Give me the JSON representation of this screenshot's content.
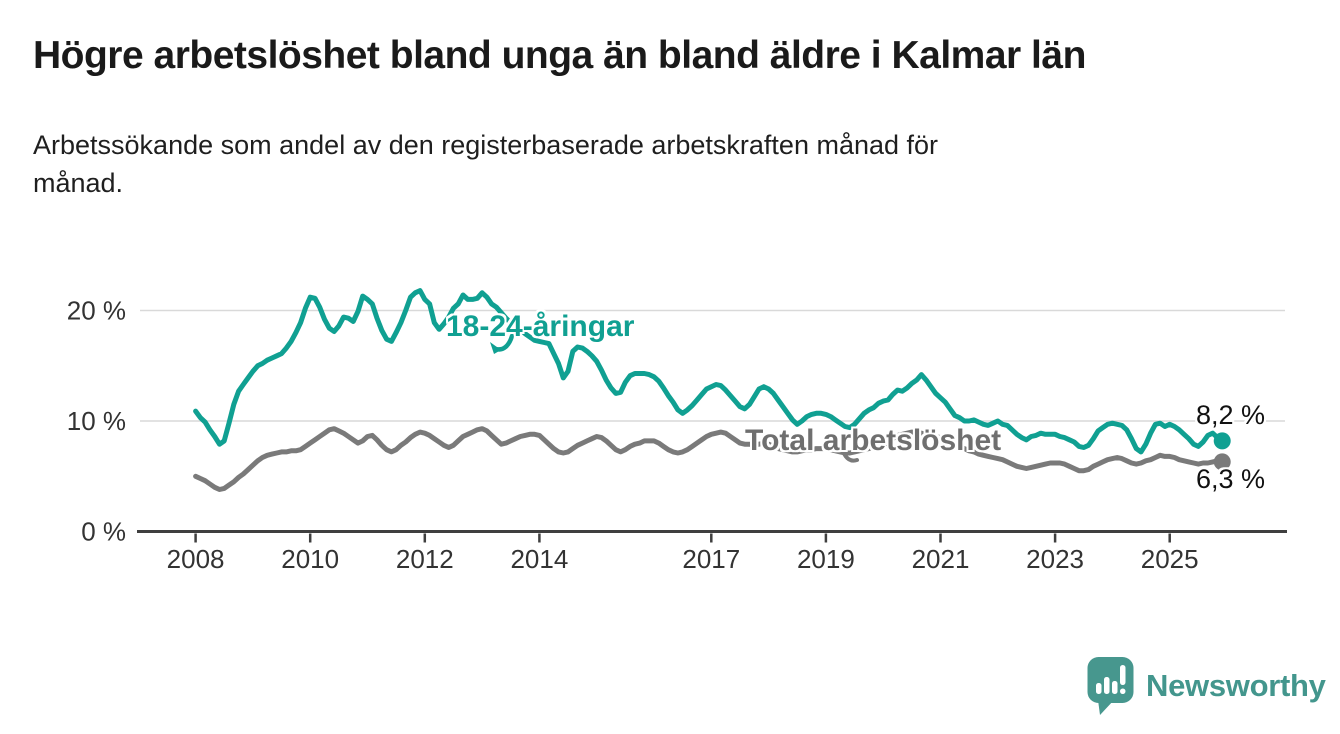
{
  "page": {
    "background": "#ffffff"
  },
  "header": {
    "title": "Högre arbetslöshet bland unga än bland äldre i Kalmar län",
    "subtitle": "Arbetssökande som andel av den registerbaserade arbetskraften månad för månad."
  },
  "footer": {
    "brand": "Newsworthy",
    "brand_color": "#43968d",
    "logo_icon": "speech-bubble-bar-chart"
  },
  "chart_data": {
    "type": "line",
    "title": "",
    "xlabel": "",
    "ylabel": "",
    "x_start": 2008.0,
    "x_step_years": 0.083333,
    "x_ticks": [
      2008,
      2010,
      2012,
      2014,
      2017,
      2019,
      2021,
      2023,
      2025
    ],
    "y_ticks": [
      0,
      10,
      20
    ],
    "y_tick_suffix": " %",
    "ylim": [
      0,
      22.5
    ],
    "xlim": [
      2007.0,
      2027.0
    ],
    "grid": "horizontal",
    "grid_color": "#d9d9d9",
    "axis_color": "#3f3f3f",
    "tick_label_color": "#333333",
    "legend_position": "inline-annotations",
    "series": [
      {
        "name": "18-24-åringar",
        "color": "#10a092",
        "end_label": "8,2 %",
        "end_value": 8.2,
        "values": [
          10.9,
          10.3,
          9.9,
          9.2,
          8.6,
          7.9,
          8.2,
          9.8,
          11.5,
          12.7,
          13.3,
          13.9,
          14.5,
          15.0,
          15.2,
          15.5,
          15.7,
          15.9,
          16.1,
          16.6,
          17.2,
          18.0,
          18.9,
          20.2,
          21.2,
          21.1,
          20.3,
          19.2,
          18.4,
          18.1,
          18.6,
          19.4,
          19.3,
          19.0,
          19.9,
          21.3,
          21.0,
          20.6,
          19.3,
          18.2,
          17.4,
          17.2,
          18.0,
          18.9,
          20.0,
          21.2,
          21.6,
          21.8,
          21.0,
          20.6,
          18.9,
          18.3,
          18.8,
          19.4,
          20.2,
          20.6,
          21.4,
          21.0,
          21.0,
          21.1,
          21.6,
          21.2,
          20.6,
          20.3,
          19.8,
          19.3,
          18.9,
          18.6,
          18.3,
          17.9,
          17.6,
          17.3,
          17.2,
          17.1,
          17.0,
          16.1,
          15.2,
          13.9,
          14.5,
          16.3,
          16.7,
          16.6,
          16.3,
          15.9,
          15.4,
          14.6,
          13.7,
          13.0,
          12.5,
          12.6,
          13.5,
          14.1,
          14.3,
          14.3,
          14.3,
          14.2,
          14.0,
          13.6,
          13.0,
          12.3,
          11.7,
          11.0,
          10.7,
          11.0,
          11.4,
          11.9,
          12.4,
          12.9,
          13.1,
          13.3,
          13.2,
          12.8,
          12.3,
          11.8,
          11.3,
          11.1,
          11.5,
          12.2,
          12.9,
          13.1,
          12.9,
          12.5,
          11.9,
          11.3,
          10.7,
          10.1,
          9.7,
          10.0,
          10.4,
          10.6,
          10.7,
          10.7,
          10.6,
          10.4,
          10.1,
          9.8,
          9.5,
          9.4,
          9.7,
          10.2,
          10.7,
          11.0,
          11.2,
          11.6,
          11.8,
          11.9,
          12.4,
          12.8,
          12.7,
          13.0,
          13.4,
          13.7,
          14.2,
          13.7,
          13.1,
          12.5,
          12.1,
          11.7,
          11.1,
          10.5,
          10.3,
          10.0,
          10.0,
          10.1,
          9.9,
          9.7,
          9.6,
          9.8,
          10.0,
          9.7,
          9.6,
          9.2,
          8.8,
          8.5,
          8.3,
          8.6,
          8.7,
          8.9,
          8.8,
          8.8,
          8.8,
          8.6,
          8.5,
          8.3,
          8.1,
          7.7,
          7.6,
          7.8,
          8.4,
          9.1,
          9.4,
          9.7,
          9.8,
          9.7,
          9.6,
          9.2,
          8.4,
          7.5,
          7.2,
          7.9,
          8.9,
          9.7,
          9.8,
          9.5,
          9.7,
          9.5,
          9.2,
          8.8,
          8.4,
          7.9,
          7.7,
          8.1,
          8.7,
          8.9,
          8.5,
          8.2
        ]
      },
      {
        "name": "Total arbetslöshet",
        "color": "#7a7a7a",
        "label_color": "#6f6f6f",
        "end_label": "6,3 %",
        "end_value": 6.3,
        "values": [
          5.0,
          4.8,
          4.6,
          4.3,
          4.0,
          3.8,
          3.9,
          4.2,
          4.5,
          4.9,
          5.2,
          5.6,
          6.0,
          6.4,
          6.7,
          6.9,
          7.0,
          7.1,
          7.2,
          7.2,
          7.3,
          7.3,
          7.4,
          7.7,
          8.0,
          8.3,
          8.6,
          8.9,
          9.2,
          9.3,
          9.1,
          8.9,
          8.6,
          8.3,
          8.0,
          8.2,
          8.6,
          8.7,
          8.3,
          7.8,
          7.4,
          7.2,
          7.4,
          7.8,
          8.1,
          8.5,
          8.8,
          9.0,
          8.9,
          8.7,
          8.4,
          8.1,
          7.8,
          7.6,
          7.8,
          8.2,
          8.6,
          8.8,
          9.0,
          9.2,
          9.3,
          9.1,
          8.7,
          8.3,
          7.9,
          8.0,
          8.2,
          8.4,
          8.6,
          8.7,
          8.8,
          8.8,
          8.7,
          8.3,
          7.9,
          7.5,
          7.2,
          7.1,
          7.2,
          7.5,
          7.8,
          8.0,
          8.2,
          8.4,
          8.6,
          8.5,
          8.2,
          7.8,
          7.4,
          7.2,
          7.4,
          7.7,
          7.9,
          8.0,
          8.2,
          8.2,
          8.2,
          8.0,
          7.7,
          7.4,
          7.2,
          7.1,
          7.2,
          7.4,
          7.7,
          8.0,
          8.3,
          8.6,
          8.8,
          8.9,
          9.0,
          8.9,
          8.6,
          8.3,
          8.0,
          7.9,
          7.9,
          7.8,
          7.9,
          8.0,
          7.9,
          7.7,
          7.5,
          7.4,
          7.3,
          7.2,
          7.2,
          7.3,
          7.4,
          7.4,
          7.5,
          7.5,
          7.5,
          7.4,
          7.3,
          7.2,
          7.1,
          7.1,
          7.2,
          7.3,
          7.4,
          7.5,
          7.6,
          7.7,
          7.8,
          8.0,
          8.4,
          8.7,
          8.8,
          8.9,
          9.0,
          9.0,
          8.9,
          8.8,
          8.7,
          8.6,
          8.5,
          8.3,
          8.1,
          7.9,
          7.7,
          7.5,
          7.3,
          7.2,
          7.0,
          6.9,
          6.8,
          6.7,
          6.6,
          6.5,
          6.3,
          6.1,
          5.9,
          5.8,
          5.7,
          5.8,
          5.9,
          6.0,
          6.1,
          6.2,
          6.2,
          6.2,
          6.1,
          5.9,
          5.7,
          5.5,
          5.5,
          5.6,
          5.9,
          6.1,
          6.3,
          6.5,
          6.6,
          6.7,
          6.6,
          6.4,
          6.2,
          6.1,
          6.2,
          6.4,
          6.5,
          6.7,
          6.9,
          6.8,
          6.8,
          6.7,
          6.5,
          6.4,
          6.3,
          6.2,
          6.1,
          6.2,
          6.2,
          6.3,
          6.4,
          6.3
        ]
      }
    ]
  }
}
